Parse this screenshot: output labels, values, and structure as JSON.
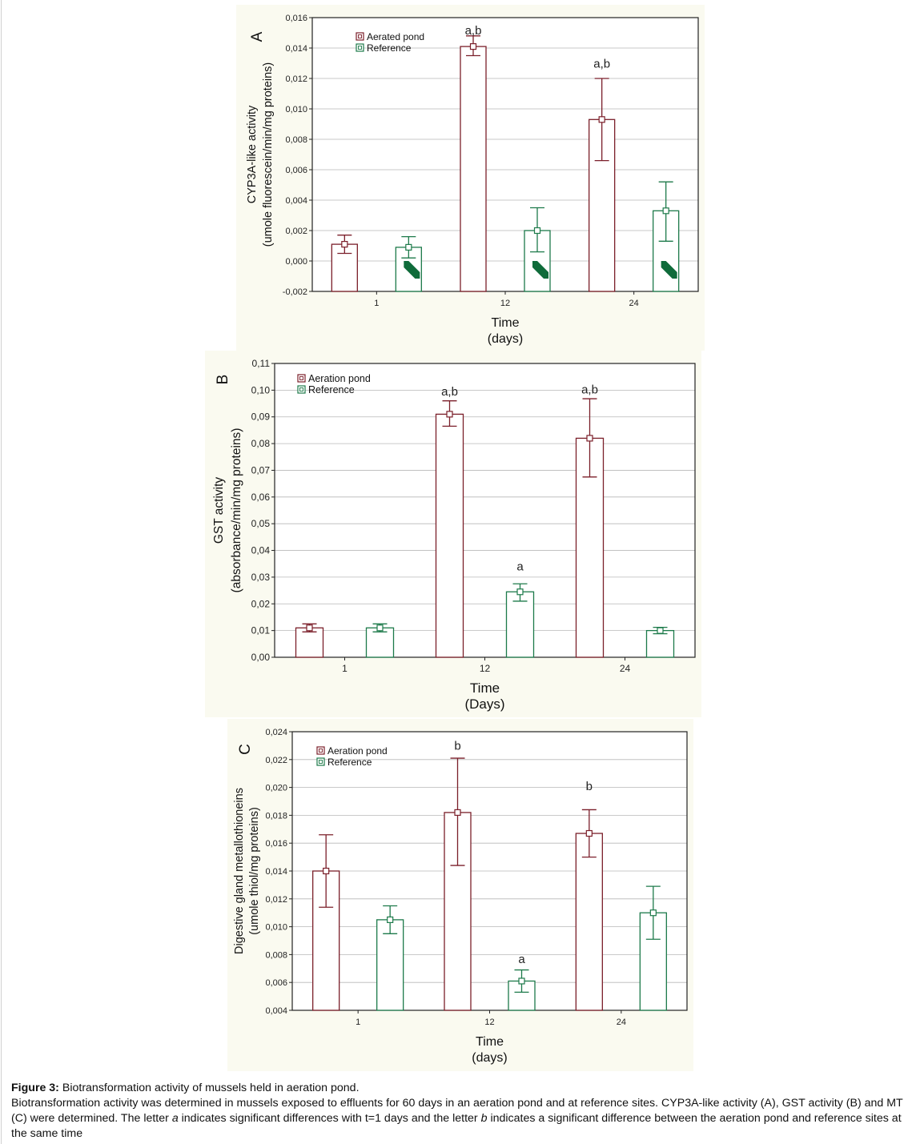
{
  "colors": {
    "aeration": "#7b1f2a",
    "reference": "#1d7a4a",
    "grid": "#b8b8b8",
    "axis": "#222222"
  },
  "chart_data": [
    {
      "type": "bar",
      "panel_letter": "A",
      "ylabel_line1": "CYP3A-like activity",
      "ylabel_line2": "(umole fluorescein/min/mg proteins)",
      "xlabel_line1": "Time",
      "xlabel_line2": "(days)",
      "categories": [
        "1",
        "12",
        "24"
      ],
      "yticks": [
        "0,016",
        "0,014",
        "0,012",
        "0,010",
        "0,008",
        "0,006",
        "0,004",
        "0,002",
        "0,000",
        "-0,002"
      ],
      "ylim": [
        -0.002,
        0.016
      ],
      "ystep": 0.002,
      "legend": [
        "Aerated pond",
        "Reference"
      ],
      "series": [
        {
          "name": "Aerated pond",
          "values": [
            0.0011,
            0.0141,
            0.0093
          ],
          "err_low": [
            0.0005,
            0.0135,
            0.0066
          ],
          "err_high": [
            0.0017,
            0.0148,
            0.012
          ]
        },
        {
          "name": "Reference",
          "values": [
            0.0009,
            0.002,
            0.0033
          ],
          "err_low": [
            0.0002,
            0.0006,
            0.0013
          ],
          "err_high": [
            0.0016,
            0.0035,
            0.0052
          ]
        }
      ],
      "annotations": [
        {
          "text": "a,b",
          "category": 1,
          "series": 0,
          "y": 0.0149
        },
        {
          "text": "a,b",
          "category": 2,
          "series": 0,
          "y": 0.0127
        }
      ]
    },
    {
      "type": "bar",
      "panel_letter": "B",
      "ylabel_line1": "GST activity",
      "ylabel_line2": "(absorbance/min/mg proteins)",
      "xlabel_line1": "Time",
      "xlabel_line2": "(Days)",
      "categories": [
        "1",
        "12",
        "24"
      ],
      "yticks": [
        "0,11",
        "0,10",
        "0,09",
        "0,08",
        "0,07",
        "0,06",
        "0,05",
        "0,04",
        "0,03",
        "0,02",
        "0,01",
        "0,00"
      ],
      "ylim": [
        0.0,
        0.11
      ],
      "ystep": 0.01,
      "legend": [
        "Aeration pond",
        "Reference"
      ],
      "series": [
        {
          "name": "Aeration pond",
          "values": [
            0.011,
            0.091,
            0.082
          ],
          "err_low": [
            0.0095,
            0.0865,
            0.0675
          ],
          "err_high": [
            0.0125,
            0.096,
            0.0968
          ]
        },
        {
          "name": "Reference",
          "values": [
            0.011,
            0.0245,
            0.01
          ],
          "err_low": [
            0.0095,
            0.021,
            0.0088
          ],
          "err_high": [
            0.0125,
            0.0275,
            0.0112
          ]
        }
      ],
      "annotations": [
        {
          "text": "a,b",
          "category": 1,
          "series": 0,
          "y": 0.098
        },
        {
          "text": "a",
          "category": 1,
          "series": 1,
          "y": 0.0325
        },
        {
          "text": "a,b",
          "category": 2,
          "series": 0,
          "y": 0.0988
        }
      ]
    },
    {
      "type": "bar",
      "panel_letter": "C",
      "ylabel_line1": "Digestive gland metallothioneins",
      "ylabel_line2": "(umole thiol/mg proteins)",
      "xlabel_line1": "Time",
      "xlabel_line2": "(days)",
      "categories": [
        "1",
        "12",
        "24"
      ],
      "yticks": [
        "0,024",
        "0,022",
        "0,020",
        "0,018",
        "0,016",
        "0,014",
        "0,012",
        "0,010",
        "0,008",
        "0,006",
        "0,004"
      ],
      "ylim": [
        0.004,
        0.024
      ],
      "ystep": 0.002,
      "legend": [
        "Aeration pond",
        "Reference"
      ],
      "series": [
        {
          "name": "Aeration pond",
          "values": [
            0.014,
            0.0182,
            0.0167
          ],
          "err_low": [
            0.0114,
            0.0144,
            0.015
          ],
          "err_high": [
            0.0166,
            0.0221,
            0.0184
          ]
        },
        {
          "name": "Reference",
          "values": [
            0.0105,
            0.0061,
            0.011
          ],
          "err_low": [
            0.0095,
            0.0053,
            0.0091
          ],
          "err_high": [
            0.0115,
            0.0069,
            0.0129
          ]
        }
      ],
      "annotations": [
        {
          "text": "b",
          "category": 1,
          "series": 0,
          "y": 0.0227
        },
        {
          "text": "a",
          "category": 1,
          "series": 1,
          "y": 0.0074
        },
        {
          "text": "b",
          "category": 2,
          "series": 0,
          "y": 0.0198
        }
      ]
    }
  ],
  "caption": {
    "label": "Figure 3:",
    "title": "Biotransformation activity of mussels held in aeration pond.",
    "body_1": "Biotransformation activity was determined in mussels exposed to effluents for 60 days in an aeration pond and at reference sites. CYP3A-like activity (A), GST activity (B) and MT (C) were determined. The letter ",
    "letter_a": "a",
    "body_2": " indicates significant differences with t=1 days and the letter ",
    "letter_b": "b",
    "body_3": " indicates a significant difference between the aeration pond and reference sites at the same time"
  }
}
